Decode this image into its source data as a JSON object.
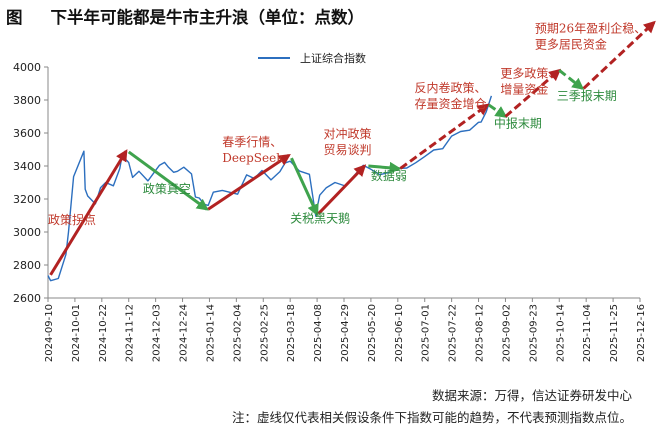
{
  "title_prefix": "图",
  "title": "下半年可能都是牛市主升浪（单位：点数）",
  "source": "数据来源：万得，信达证券研发中心",
  "footnote": "注：虚线仅代表相关假设条件下指数可能的趋势，不代表预测指数点位。",
  "colors": {
    "series": "#2c6fbf",
    "up_arrow": "#b22222",
    "down_arrow": "#3fa34d",
    "up_text": "#c0392b",
    "down_text": "#2e8b3e",
    "axis": "#888888"
  },
  "chart_data": {
    "type": "line",
    "title": "下半年可能都是牛市主升浪（单位：点数）",
    "xlabel": "",
    "ylabel": "",
    "ylim": [
      2600,
      4000
    ],
    "yticks": [
      2600,
      2800,
      3000,
      3200,
      3400,
      3600,
      3800,
      4000
    ],
    "xlim": [
      "2024-09-10",
      "2025-12-16"
    ],
    "xticks": [
      "2024-09-10",
      "2024-10-01",
      "2024-10-22",
      "2024-11-12",
      "2024-12-03",
      "2024-12-24",
      "2025-01-14",
      "2025-02-04",
      "2025-02-25",
      "2025-03-18",
      "2025-04-08",
      "2025-04-29",
      "2025-05-20",
      "2025-06-10",
      "2025-07-01",
      "2025-07-22",
      "2025-08-12",
      "2025-09-02",
      "2025-09-23",
      "2025-10-14",
      "2025-11-04",
      "2025-11-25",
      "2025-12-16"
    ],
    "grid": false,
    "legend": "top-center",
    "series": [
      {
        "name": "上证综合指数",
        "x": [
          "2024-09-10",
          "2024-09-12",
          "2024-09-18",
          "2024-09-24",
          "2024-09-26",
          "2024-09-30",
          "2024-10-08",
          "2024-10-09",
          "2024-10-11",
          "2024-10-17",
          "2024-10-21",
          "2024-10-25",
          "2024-10-31",
          "2024-11-05",
          "2024-11-07",
          "2024-11-08",
          "2024-11-12",
          "2024-11-15",
          "2024-11-20",
          "2024-11-27",
          "2024-12-02",
          "2024-12-06",
          "2024-12-10",
          "2024-12-13",
          "2024-12-17",
          "2024-12-20",
          "2024-12-25",
          "2024-12-31",
          "2025-01-03",
          "2025-01-06",
          "2025-01-10",
          "2025-01-13",
          "2025-01-17",
          "2025-01-24",
          "2025-02-05",
          "2025-02-12",
          "2025-02-18",
          "2025-02-24",
          "2025-03-03",
          "2025-03-10",
          "2025-03-14",
          "2025-03-18",
          "2025-03-25",
          "2025-04-02",
          "2025-04-07",
          "2025-04-08",
          "2025-04-10",
          "2025-04-15",
          "2025-04-22",
          "2025-04-30",
          "2025-05-07",
          "2025-05-14",
          "2025-05-20",
          "2025-05-27",
          "2025-06-03",
          "2025-06-10",
          "2025-06-17",
          "2025-06-24",
          "2025-07-01",
          "2025-07-08",
          "2025-07-15",
          "2025-07-22",
          "2025-07-29",
          "2025-08-05",
          "2025-08-12",
          "2025-08-14",
          "2025-08-18",
          "2025-08-22"
        ],
        "values": [
          2736,
          2705,
          2718,
          2863,
          3000,
          3336,
          3490,
          3259,
          3218,
          3170,
          3268,
          3300,
          3280,
          3385,
          3470,
          3452,
          3421,
          3331,
          3368,
          3310,
          3363,
          3405,
          3422,
          3392,
          3362,
          3368,
          3393,
          3352,
          3212,
          3206,
          3168,
          3161,
          3241,
          3252,
          3229,
          3346,
          3324,
          3373,
          3316,
          3366,
          3419,
          3429,
          3370,
          3350,
          3096,
          3145,
          3223,
          3267,
          3300,
          3279,
          3343,
          3404,
          3380,
          3347,
          3361,
          3384,
          3388,
          3420,
          3457,
          3497,
          3505,
          3581,
          3609,
          3617,
          3665,
          3666,
          3728,
          3825
        ]
      }
    ],
    "arrows": [
      {
        "kind": "up",
        "style": "solid",
        "from": [
          "2024-09-12",
          2740
        ],
        "to": [
          "2024-11-10",
          3490
        ],
        "label": "政策拐点"
      },
      {
        "kind": "down",
        "style": "solid",
        "from": [
          "2024-11-12",
          3485
        ],
        "to": [
          "2025-01-12",
          3138
        ],
        "label": "政策真空"
      },
      {
        "kind": "up",
        "style": "solid",
        "from": [
          "2025-01-13",
          3138
        ],
        "to": [
          "2025-03-17",
          3465
        ],
        "label": "春季行情、DeepSeek"
      },
      {
        "kind": "down",
        "style": "solid",
        "from": [
          "2025-03-19",
          3448
        ],
        "to": [
          "2025-04-08",
          3108
        ],
        "label": "关税黑天鹅"
      },
      {
        "kind": "up",
        "style": "solid",
        "from": [
          "2025-04-09",
          3110
        ],
        "to": [
          "2025-05-15",
          3400
        ],
        "label": "对冲政策贸易谈判"
      },
      {
        "kind": "down",
        "style": "solid",
        "from": [
          "2025-05-18",
          3400
        ],
        "to": [
          "2025-06-11",
          3384
        ],
        "label": "数据弱"
      },
      {
        "kind": "up",
        "style": "dashed",
        "from": [
          "2025-06-12",
          3385
        ],
        "to": [
          "2025-08-19",
          3770
        ],
        "label": "反内卷政策、存量资金增仓"
      },
      {
        "kind": "down",
        "style": "dashed",
        "from": [
          "2025-08-20",
          3770
        ],
        "to": [
          "2025-09-02",
          3700
        ],
        "label": "中报末期"
      },
      {
        "kind": "up",
        "style": "dashed",
        "from": [
          "2025-09-02",
          3700
        ],
        "to": [
          "2025-10-14",
          3980
        ],
        "label": "更多政策、增量资金"
      },
      {
        "kind": "down",
        "style": "dashed",
        "from": [
          "2025-10-14",
          3980
        ],
        "to": [
          "2025-11-01",
          3870
        ],
        "label": "三季报末期"
      },
      {
        "kind": "up",
        "style": "dashed",
        "from": [
          "2025-11-02",
          3870
        ],
        "to": [
          "2025-12-27",
          4270
        ],
        "label": "预期26年盈利企稳、更多居民资金"
      }
    ],
    "annotations": [
      {
        "lines": [
          "政策拐点"
        ],
        "kind": "up",
        "at": [
          "2024-09-10",
          3050
        ]
      },
      {
        "lines": [
          "政策真空"
        ],
        "kind": "down",
        "at": [
          "2024-11-23",
          3235
        ]
      },
      {
        "lines": [
          "春季行情、",
          "DeepSeek"
        ],
        "kind": "up",
        "at": [
          "2025-01-24",
          3520
        ]
      },
      {
        "lines": [
          "关税黑天鹅"
        ],
        "kind": "down",
        "at": [
          "2025-03-18",
          3058
        ]
      },
      {
        "lines": [
          "对冲政策",
          "贸易谈判"
        ],
        "kind": "up",
        "at": [
          "2025-04-13",
          3570
        ]
      },
      {
        "lines": [
          "数据弱"
        ],
        "kind": "down",
        "at": [
          "2025-05-20",
          3315
        ]
      },
      {
        "lines": [
          "反内卷政策、",
          "存量资金增仓"
        ],
        "kind": "up",
        "at": [
          "2025-06-23",
          3850
        ]
      },
      {
        "lines": [
          "中报末期"
        ],
        "kind": "down",
        "at": [
          "2025-08-24",
          3632
        ]
      },
      {
        "lines": [
          "更多政策、",
          "增量资金"
        ],
        "kind": "up",
        "at": [
          "2025-08-29",
          3935
        ]
      },
      {
        "lines": [
          "三季报末期"
        ],
        "kind": "down",
        "at": [
          "2025-10-12",
          3800
        ]
      },
      {
        "lines": [
          "预期26年盈利企稳、",
          "更多居民资金"
        ],
        "kind": "up",
        "at": [
          "2025-09-25",
          4210
        ]
      }
    ]
  }
}
